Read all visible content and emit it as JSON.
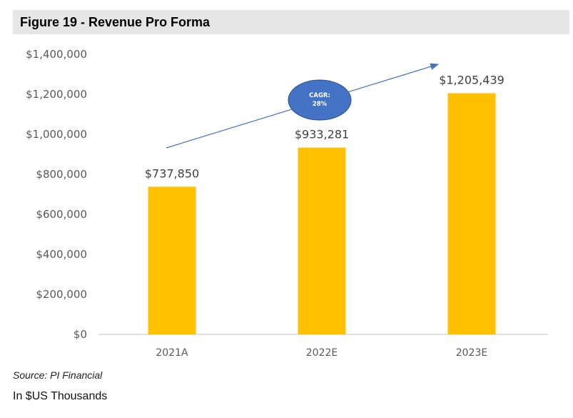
{
  "figure": {
    "title": "Figure 19 - Revenue Pro Forma",
    "source": "Source: PI Financial",
    "units": "In $US Thousands"
  },
  "colors": {
    "bar": "#FFC000",
    "axis_text": "#595959",
    "baseline": "#d9d9d9",
    "arrow": "#4472C4",
    "bubble": "#4472C4",
    "bubble_text": "#ffffff",
    "title_bg": "#e6e6e6"
  },
  "chart_data": {
    "type": "bar",
    "title": "",
    "xlabel": "",
    "ylabel": "",
    "categories": [
      "2021A",
      "2022E",
      "2023E"
    ],
    "series": [
      {
        "values": [
          737850,
          933281,
          1205439
        ]
      }
    ],
    "data_labels": [
      "$737,850",
      "$933,281",
      "$1,205,439"
    ],
    "ylim": [
      0,
      1400000
    ],
    "yticks": [
      0,
      200000,
      400000,
      600000,
      800000,
      1000000,
      1200000,
      1400000
    ],
    "ytick_labels": [
      "$0",
      "$200,000",
      "$400,000",
      "$600,000",
      "$800,000",
      "$1,000,000",
      "$1,200,000",
      "$1,400,000"
    ],
    "grid": false,
    "legend": "none",
    "annotations": [
      {
        "type": "arrow",
        "text": ""
      },
      {
        "type": "bubble",
        "text_lines": [
          "CAGR:",
          "28%"
        ]
      }
    ]
  }
}
